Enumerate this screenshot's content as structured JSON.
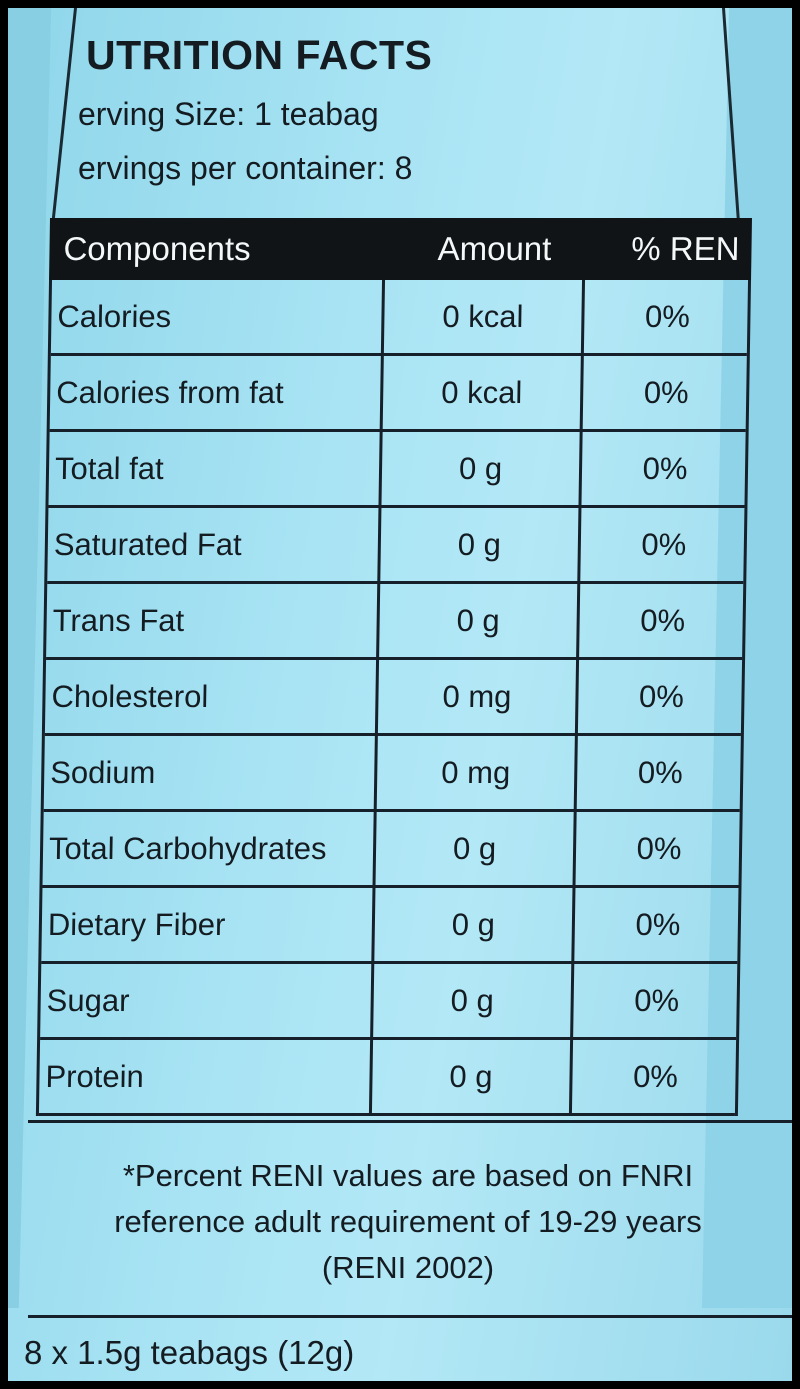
{
  "label": {
    "title": "UTRITION FACTS",
    "serving_size": "erving Size: 1 teabag",
    "servings_per_container": "ervings per container: 8"
  },
  "table": {
    "headers": [
      "Components",
      "Amount",
      "% REN"
    ],
    "rows": [
      {
        "component": "Calories",
        "amount": "0 kcal",
        "pct": "0%"
      },
      {
        "component": "Calories from fat",
        "amount": "0 kcal",
        "pct": "0%"
      },
      {
        "component": "Total fat",
        "amount": "0 g",
        "pct": "0%"
      },
      {
        "component": "Saturated Fat",
        "amount": "0 g",
        "pct": "0%"
      },
      {
        "component": "Trans Fat",
        "amount": "0 g",
        "pct": "0%"
      },
      {
        "component": "Cholesterol",
        "amount": "0 mg",
        "pct": "0%"
      },
      {
        "component": "Sodium",
        "amount": "0 mg",
        "pct": "0%"
      },
      {
        "component": "Total Carbohydrates",
        "amount": "0 g",
        "pct": "0%"
      },
      {
        "component": "Dietary Fiber",
        "amount": "0 g",
        "pct": "0%"
      },
      {
        "component": "Sugar",
        "amount": "0 g",
        "pct": "0%"
      },
      {
        "component": "Protein",
        "amount": "0 g",
        "pct": "0%"
      }
    ]
  },
  "footnote": "*Percent RENI values are based on FNRI reference adult requirement of 19-29 years (RENI 2002)",
  "package_info": "8 x 1.5g teabags (12g)",
  "colors": {
    "background": "#a9e4f4",
    "ink": "#141c22",
    "header_bar": "#111417",
    "border": "#000000"
  }
}
